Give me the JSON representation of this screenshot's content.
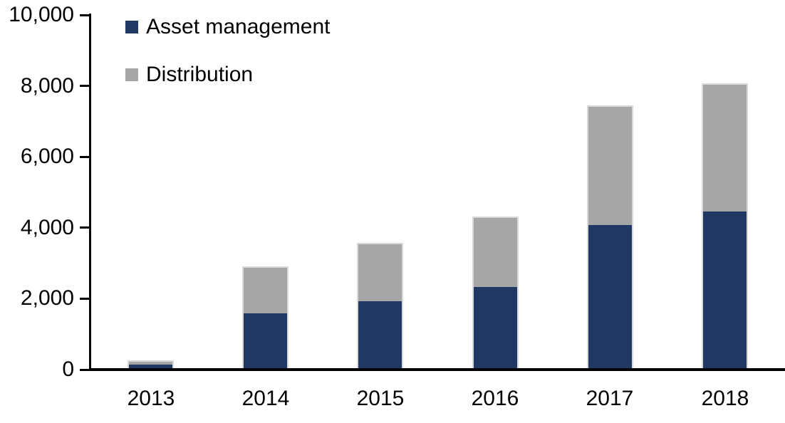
{
  "chart_data": {
    "type": "bar",
    "stacked": true,
    "title": "",
    "xlabel": "",
    "ylabel": "",
    "categories": [
      "2013",
      "2014",
      "2015",
      "2016",
      "2017",
      "2018"
    ],
    "series": [
      {
        "name": "Asset management",
        "color": "#1F3864",
        "values": [
          100,
          1540,
          1880,
          2300,
          4030,
          4410
        ]
      },
      {
        "name": "Distribution",
        "color": "#A6A6A6",
        "values": [
          85,
          1300,
          1610,
          1930,
          3340,
          3580
        ]
      }
    ],
    "ylim": [
      0,
      10000
    ],
    "yticks": [
      0,
      2000,
      4000,
      6000,
      8000,
      10000
    ],
    "ytick_labels": [
      "0",
      "2,000",
      "4,000",
      "6,000",
      "8,000",
      "10,000"
    ],
    "grid": false,
    "legend_position": "top-left-inside",
    "axis_color": "#000000",
    "bar_border_color": "#D9D9D9",
    "background_color": "#FFFFFF"
  }
}
